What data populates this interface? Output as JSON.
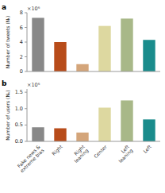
{
  "chart_data": [
    {
      "type": "bar",
      "title": "a",
      "annotations": [
        "×10⁶"
      ],
      "ylabel": "Number of tweets (Nₜ)",
      "categories": [
        "Fake news &\nextreme bias",
        "Right",
        "Right\nleaning",
        "Center",
        "Left\nleaning",
        "Left"
      ],
      "values": [
        7.3,
        4.0,
        1.0,
        6.2,
        7.2,
        4.3
      ],
      "colors": [
        "#888888",
        "#b84c1a",
        "#d4a57a",
        "#ddd8a0",
        "#a8b888",
        "#1a8c8c"
      ],
      "ylim": [
        0,
        8
      ],
      "yticks": [
        0,
        2,
        4,
        6,
        8
      ],
      "tick_labels": "y"
    },
    {
      "type": "bar",
      "title": "b",
      "annotations": [
        "×10⁶"
      ],
      "ylabel": "Number of users (Nᵤ)",
      "categories": [
        "Fake news &\nextreme bias",
        "Right",
        "Right\nleaning",
        "Center",
        "Left\nleaning",
        "Left"
      ],
      "values": [
        0.43,
        0.4,
        0.27,
        1.03,
        1.25,
        0.67
      ],
      "colors": [
        "#888888",
        "#b84c1a",
        "#d4a57a",
        "#ddd8a0",
        "#a8b888",
        "#1a8c8c"
      ],
      "ylim": [
        0,
        1.6
      ],
      "yticks": [
        {
          "value": 0,
          "label": "0.0"
        },
        0.5,
        {
          "value": 1,
          "label": "1.0"
        },
        1.5
      ]
    }
  ]
}
